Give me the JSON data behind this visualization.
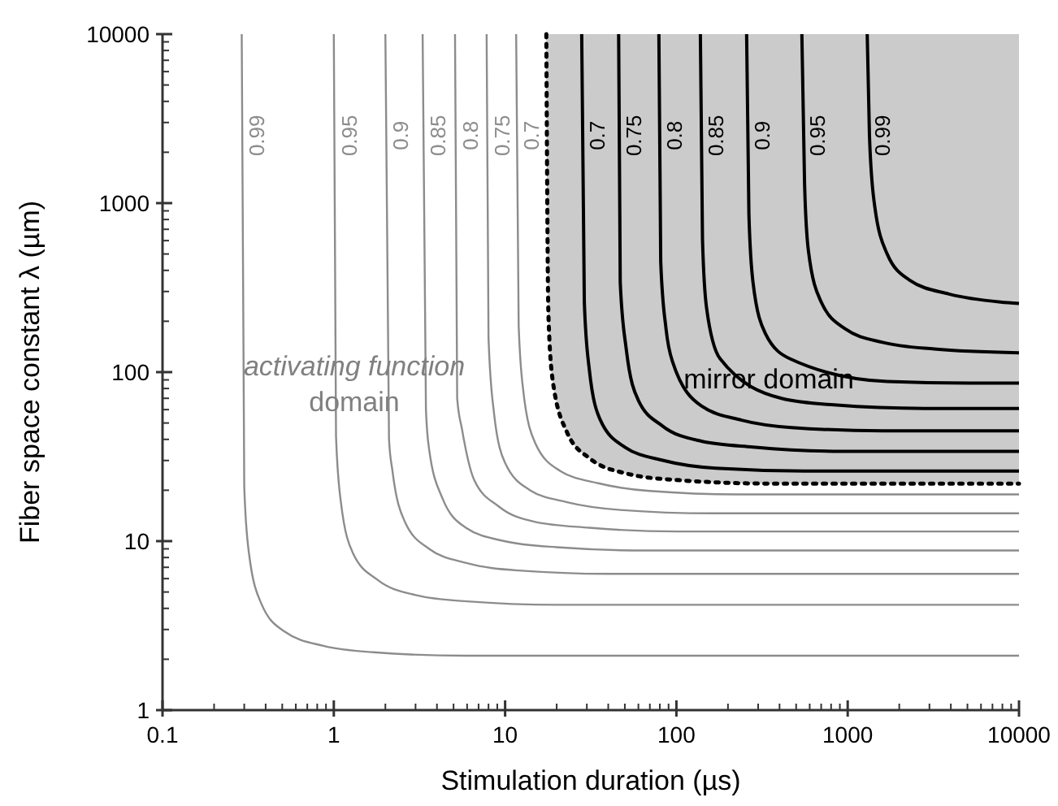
{
  "chart_data": {
    "type": "line",
    "xlabel": "Stimulation duration (µs)",
    "ylabel": "Fiber space constant λ (µm)",
    "log": "xy",
    "xlim": [
      0.1,
      10000
    ],
    "ylim": [
      1,
      10000
    ],
    "xticks": [
      0.1,
      1,
      10,
      100,
      1000,
      10000
    ],
    "yticks": [
      1,
      10,
      100,
      1000,
      10000
    ],
    "grid": false,
    "legend": false,
    "marker": "none",
    "series": [
      {
        "name": "0.99",
        "color": "#8c8c8c",
        "x": [
          0.29,
          0.3,
          0.32,
          0.38,
          0.52,
          0.87,
          1.7,
          5.8,
          10000
        ],
        "values": [
          10000,
          21,
          8.4,
          4.2,
          2.9,
          2.4,
          2.2,
          2.1,
          2.1
        ]
      },
      {
        "name": "0.95",
        "color": "#8c8c8c",
        "x": [
          1,
          1.03,
          1.1,
          1.3,
          1.8,
          3,
          6,
          20,
          10000
        ],
        "values": [
          10000,
          42,
          17,
          8.4,
          5.9,
          4.8,
          4.4,
          4.2,
          4.2
        ]
      },
      {
        "name": "0.9",
        "color": "#8c8c8c",
        "x": [
          2,
          2.1,
          2.2,
          2.6,
          3.6,
          6,
          12,
          40,
          10000
        ],
        "values": [
          10000,
          40,
          26,
          13,
          9,
          7.4,
          6.7,
          6.4,
          6.4
        ]
      },
      {
        "name": "0.85",
        "color": "#8c8c8c",
        "x": [
          3.3,
          3.45,
          3.6,
          4.3,
          5.9,
          9.9,
          20,
          66,
          10000
        ],
        "values": [
          10000,
          60,
          35,
          18,
          12,
          10,
          9.2,
          8.8,
          8.8
        ]
      },
      {
        "name": "0.8",
        "color": "#8c8c8c",
        "x": [
          5.1,
          5.25,
          5.6,
          6.6,
          9.2,
          15,
          31,
          100,
          10000
        ],
        "values": [
          10000,
          70,
          46,
          23,
          16,
          13,
          12,
          11.4,
          11.4
        ]
      },
      {
        "name": "0.75",
        "color": "#8c8c8c",
        "x": [
          7.8,
          8,
          8.6,
          10,
          14,
          23,
          47,
          160,
          10000
        ],
        "values": [
          10000,
          160,
          58,
          29,
          20,
          17,
          15.3,
          14.6,
          14.6
        ]
      },
      {
        "name": "0.7",
        "color": "#8c8c8c",
        "x": [
          11.6,
          12,
          12.8,
          15,
          21,
          35,
          70,
          230,
          10000
        ],
        "values": [
          10000,
          189,
          76,
          38,
          26,
          22,
          19.8,
          18.9,
          18.9
        ]
      },
      {
        "color": "#000000",
        "line_style": "dotted",
        "x": [
          17.4,
          17.9,
          19,
          23,
          31,
          52,
          100,
          350,
          10000
        ],
        "values": [
          10000,
          219,
          88,
          44,
          31,
          25,
          23,
          21.9,
          21.9
        ],
        "lower": [
          10000,
          219,
          88,
          44,
          31,
          25,
          23,
          21.9,
          21.9
        ],
        "upper": [
          10000,
          10000,
          10000,
          10000,
          10000,
          10000,
          10000,
          10000,
          10000
        ]
      },
      {
        "name": "0.7",
        "color": "#000000",
        "x": [
          28,
          29,
          31,
          36,
          50,
          84,
          170,
          560,
          10000
        ],
        "values": [
          10000,
          260,
          104,
          52,
          36,
          30,
          27,
          26,
          26
        ]
      },
      {
        "name": "0.75",
        "color": "#000000",
        "x": [
          46,
          47,
          51,
          60,
          83,
          140,
          280,
          920,
          10000
        ],
        "values": [
          10000,
          340,
          136,
          68,
          48,
          39,
          36,
          34,
          34
        ]
      },
      {
        "name": "0.8",
        "color": "#000000",
        "x": [
          79,
          81,
          87,
          95,
          140,
          240,
          470,
          1600,
          10000
        ],
        "values": [
          10000,
          450,
          180,
          115,
          63,
          52,
          47,
          45,
          45
        ]
      },
      {
        "name": "0.85",
        "color": "#000000",
        "x": [
          138,
          142,
          150,
          180,
          410,
          830,
          2800,
          10000
        ],
        "values": [
          10000,
          610,
          240,
          120,
          70,
          64,
          61,
          61
        ]
      },
      {
        "name": "0.9",
        "color": "#000000",
        "x": [
          257,
          265,
          280,
          330,
          460,
          1700,
          5100,
          10000
        ],
        "values": [
          10000,
          860,
          340,
          170,
          120,
          88,
          86,
          86
        ]
      },
      {
        "name": "0.95",
        "color": "#000000",
        "x": [
          540,
          560,
          590,
          700,
          970,
          1600,
          3200,
          10000
        ],
        "values": [
          10000,
          1300,
          520,
          260,
          180,
          150,
          137,
          130
        ]
      },
      {
        "name": "0.99",
        "color": "#000000",
        "x": [
          1300,
          1340,
          1430,
          1700,
          2300,
          3900,
          7800,
          10000
        ],
        "values": [
          10000,
          2500,
          1000,
          500,
          350,
          290,
          260,
          255
        ]
      }
    ],
    "annotations": [
      "activating function",
      "domain",
      "mirror domain"
    ]
  }
}
